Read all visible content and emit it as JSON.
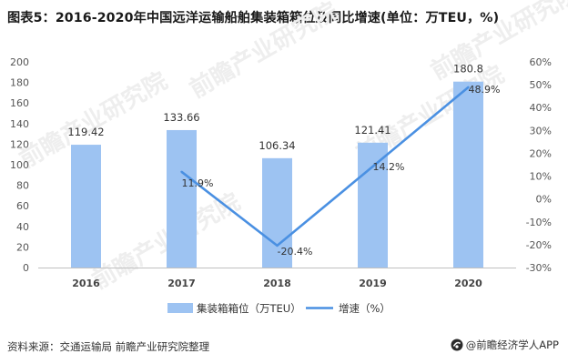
{
  "title": "图表5：2016-2020年中国远洋运输船舶集装箱箱位及同比增速(单位：万TEU，%)",
  "source": "资料来源：交通运输局 前瞻产业研究院整理",
  "brand": "@前瞻经济学人APP",
  "watermark": "前瞻产业研究院",
  "colors": {
    "bar": "#9dc3f2",
    "line": "#4a90e2",
    "axis_text": "#555555",
    "grid": "#dddddd",
    "watermark": "#eeeeee"
  },
  "chart_data": {
    "type": "bar",
    "categories": [
      "2016",
      "2017",
      "2018",
      "2019",
      "2020"
    ],
    "series": [
      {
        "name": "集装箱箱位（万TEU）",
        "type": "bar",
        "axis": "left",
        "values": [
          119.42,
          133.66,
          106.34,
          121.41,
          180.8
        ],
        "labels": [
          "119.42",
          "133.66",
          "106.34",
          "121.41",
          "180.8"
        ]
      },
      {
        "name": "增速（%）",
        "type": "line",
        "axis": "right",
        "x": [
          "2017",
          "2018",
          "2019",
          "2020"
        ],
        "values": [
          11.9,
          -20.4,
          14.2,
          48.9
        ],
        "labels": [
          "11.9%",
          "-20.4%",
          "14.2%",
          "48.9%"
        ]
      }
    ],
    "ylim_left": [
      0,
      200
    ],
    "yticks_left": [
      "0",
      "20",
      "40",
      "60",
      "80",
      "100",
      "120",
      "140",
      "160",
      "180",
      "200"
    ],
    "ylim_right": [
      -30,
      60
    ],
    "yticks_right": [
      "-30%",
      "-20%",
      "-10%",
      "0%",
      "10%",
      "20%",
      "30%",
      "40%",
      "50%",
      "60%"
    ],
    "grid": false,
    "legend": "bottom"
  }
}
